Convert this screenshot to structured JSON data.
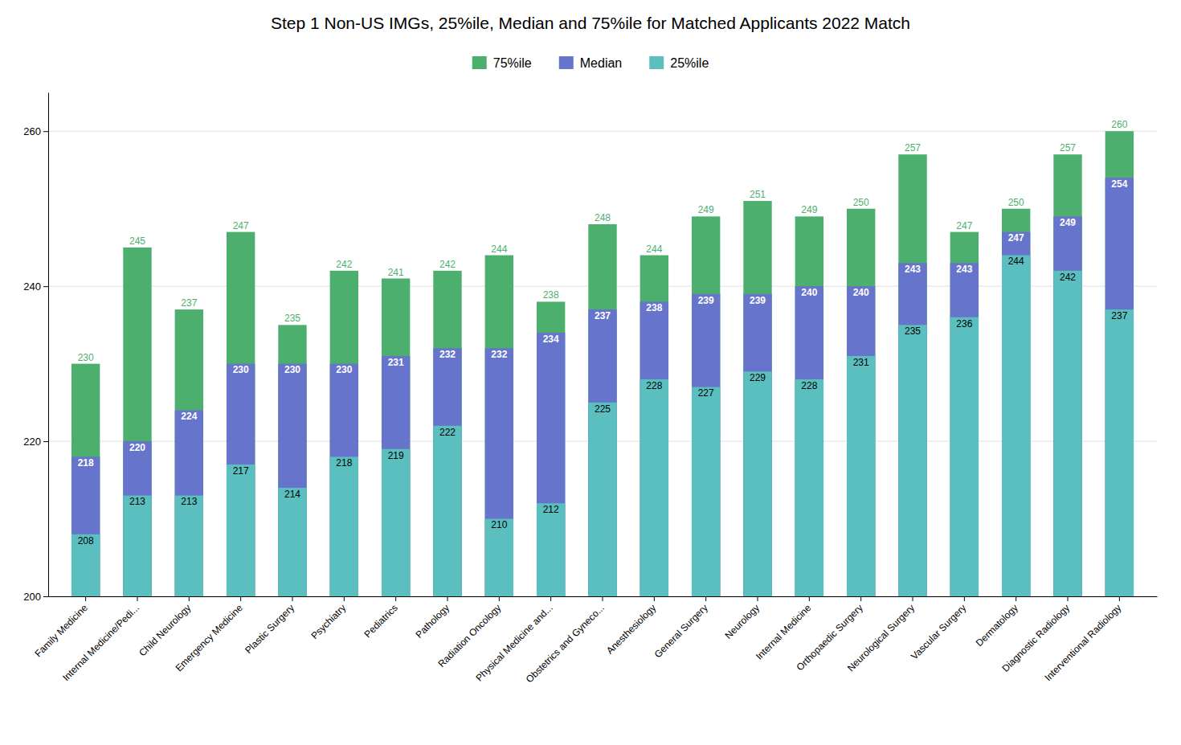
{
  "chart_data": {
    "type": "bar",
    "title": "Step 1 Non-US IMGs, 25%ile, Median and 75%ile for Matched Applicants 2022 Match",
    "categories": [
      "Family Medicine",
      "Internal Medicine/Pedi...",
      "Child Neurology",
      "Emergency Medicine",
      "Plastic Surgery",
      "Psychiatry",
      "Pediatrics",
      "Pathology",
      "Radiation Oncology",
      "Physical Medicine and...",
      "Obstetrics and Gyneco...",
      "Anesthesiology",
      "General Surgery",
      "Neurology",
      "Internal Medicine",
      "Orthopaedic Surgery",
      "Neurological Surgery",
      "Vascular Surgery",
      "Dermatology",
      "Diagnostic Radiology",
      "Interventional Radiology"
    ],
    "series": [
      {
        "name": "75%ile",
        "color": "#4caf6e",
        "values": [
          230,
          245,
          237,
          247,
          235,
          242,
          241,
          242,
          244,
          238,
          248,
          244,
          249,
          251,
          249,
          250,
          257,
          247,
          250,
          257,
          260
        ]
      },
      {
        "name": "Median",
        "color": "#6674cc",
        "values": [
          218,
          220,
          224,
          230,
          230,
          230,
          231,
          232,
          232,
          234,
          237,
          238,
          239,
          239,
          240,
          240,
          243,
          243,
          247,
          249,
          254
        ]
      },
      {
        "name": "25%ile",
        "color": "#5bbfbf",
        "values": [
          208,
          213,
          213,
          217,
          214,
          218,
          219,
          222,
          210,
          212,
          225,
          228,
          227,
          229,
          228,
          231,
          235,
          236,
          244,
          242,
          237
        ]
      }
    ],
    "ylim": [
      200,
      265
    ],
    "yticks": [
      200,
      220,
      240,
      260
    ],
    "grid": true,
    "legend": "top",
    "data_labels": true
  }
}
